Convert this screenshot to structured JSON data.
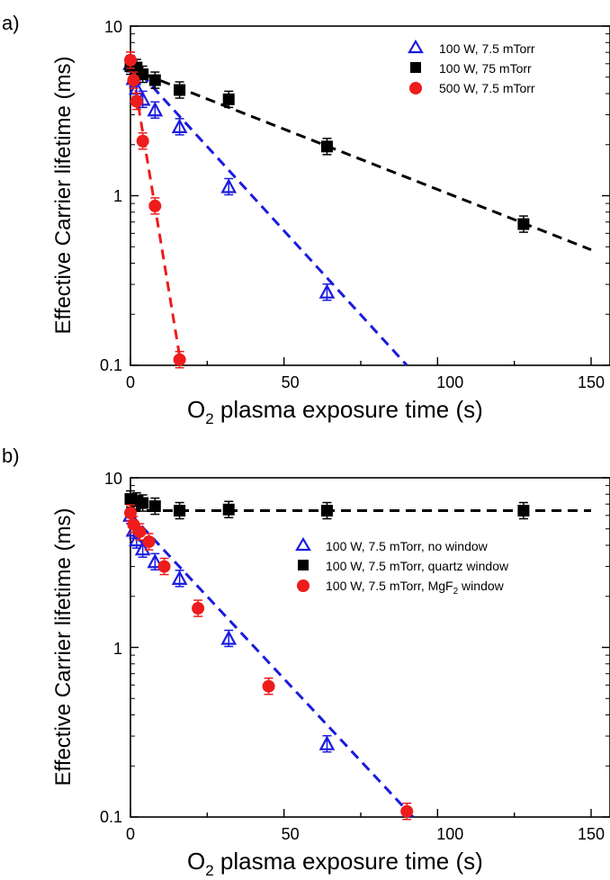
{
  "chart_data": [
    {
      "panel_label": "a)",
      "type": "scatter",
      "xlabel_main": "O",
      "xlabel_sub": "2",
      "xlabel_rest": " plasma exposure time (s)",
      "ylabel": "Effective Carrier lifetime (ms)",
      "xlim": [
        0,
        150
      ],
      "ylim": [
        0.1,
        10
      ],
      "yscale": "log",
      "xticks": [
        "0",
        "50",
        "100",
        "150"
      ],
      "yticks": [
        "0.1",
        "1",
        "10"
      ],
      "legend_position": "top-right",
      "series": [
        {
          "name": "100 W, 7.5 mTorr",
          "marker": "triangle-open",
          "color": "#1a1adf",
          "x": [
            0,
            1,
            2,
            4,
            8,
            16,
            32,
            64
          ],
          "y": [
            6.0,
            4.9,
            4.3,
            3.7,
            3.2,
            2.55,
            1.13,
            0.27
          ],
          "fit": {
            "x": [
              0,
              90
            ],
            "y": [
              6.1,
              0.1
            ]
          }
        },
        {
          "name": "100 W, 75 mTorr",
          "marker": "square",
          "color": "#000000",
          "x": [
            0,
            2,
            4,
            8,
            16,
            32,
            64,
            128
          ],
          "y": [
            5.8,
            5.7,
            5.2,
            4.8,
            4.2,
            3.7,
            1.95,
            0.68
          ],
          "fit": {
            "x": [
              0,
              150
            ],
            "y": [
              5.6,
              0.48
            ]
          }
        },
        {
          "name": "500 W, 7.5 mTorr",
          "marker": "circle",
          "color": "#ee1c1c",
          "x": [
            0,
            1,
            2,
            4,
            8,
            16
          ],
          "y": [
            6.3,
            4.8,
            3.6,
            2.1,
            0.87,
            0.108
          ],
          "fit": {
            "x": [
              0,
              16.5
            ],
            "y": [
              6.5,
              0.1
            ]
          }
        }
      ]
    },
    {
      "panel_label": "b)",
      "type": "scatter",
      "xlabel_main": "O",
      "xlabel_sub": "2",
      "xlabel_rest": " plasma exposure time (s)",
      "ylabel": "Effective Carrier lifetime (ms)",
      "xlim": [
        0,
        150
      ],
      "ylim": [
        0.1,
        10
      ],
      "yscale": "log",
      "xticks": [
        "0",
        "50",
        "100",
        "150"
      ],
      "yticks": [
        "0.1",
        "1",
        "10"
      ],
      "legend_position": "center-right",
      "series": [
        {
          "name": "100 W, 7.5 mTorr, no window",
          "marker": "triangle-open",
          "color": "#1a1adf",
          "x": [
            0,
            1,
            2,
            4,
            8,
            16,
            32,
            64
          ],
          "y": [
            6.0,
            4.9,
            4.3,
            3.8,
            3.2,
            2.55,
            1.13,
            0.27
          ],
          "fit": {
            "x": [
              0,
              92
            ],
            "y": [
              6.1,
              0.1
            ]
          }
        },
        {
          "name": "100 W, 7.5 mTorr, quartz window",
          "marker": "square",
          "color": "#000000",
          "x": [
            0,
            2,
            4,
            8,
            16,
            32,
            64,
            128
          ],
          "y": [
            7.5,
            7.3,
            7.1,
            6.8,
            6.4,
            6.5,
            6.4,
            6.4
          ],
          "fit": {
            "x": [
              0,
              150
            ],
            "y": [
              6.4,
              6.4
            ]
          }
        },
        {
          "name_main": "100 W, 7.5 mTorr, MgF",
          "name_sub": "2",
          "name_rest": " window",
          "marker": "circle",
          "color": "#ee1c1c",
          "x": [
            0,
            1,
            3,
            6,
            11,
            22,
            45,
            90
          ],
          "y": [
            6.2,
            5.3,
            4.8,
            4.2,
            3.0,
            1.7,
            0.59,
            0.108
          ]
        }
      ]
    }
  ]
}
